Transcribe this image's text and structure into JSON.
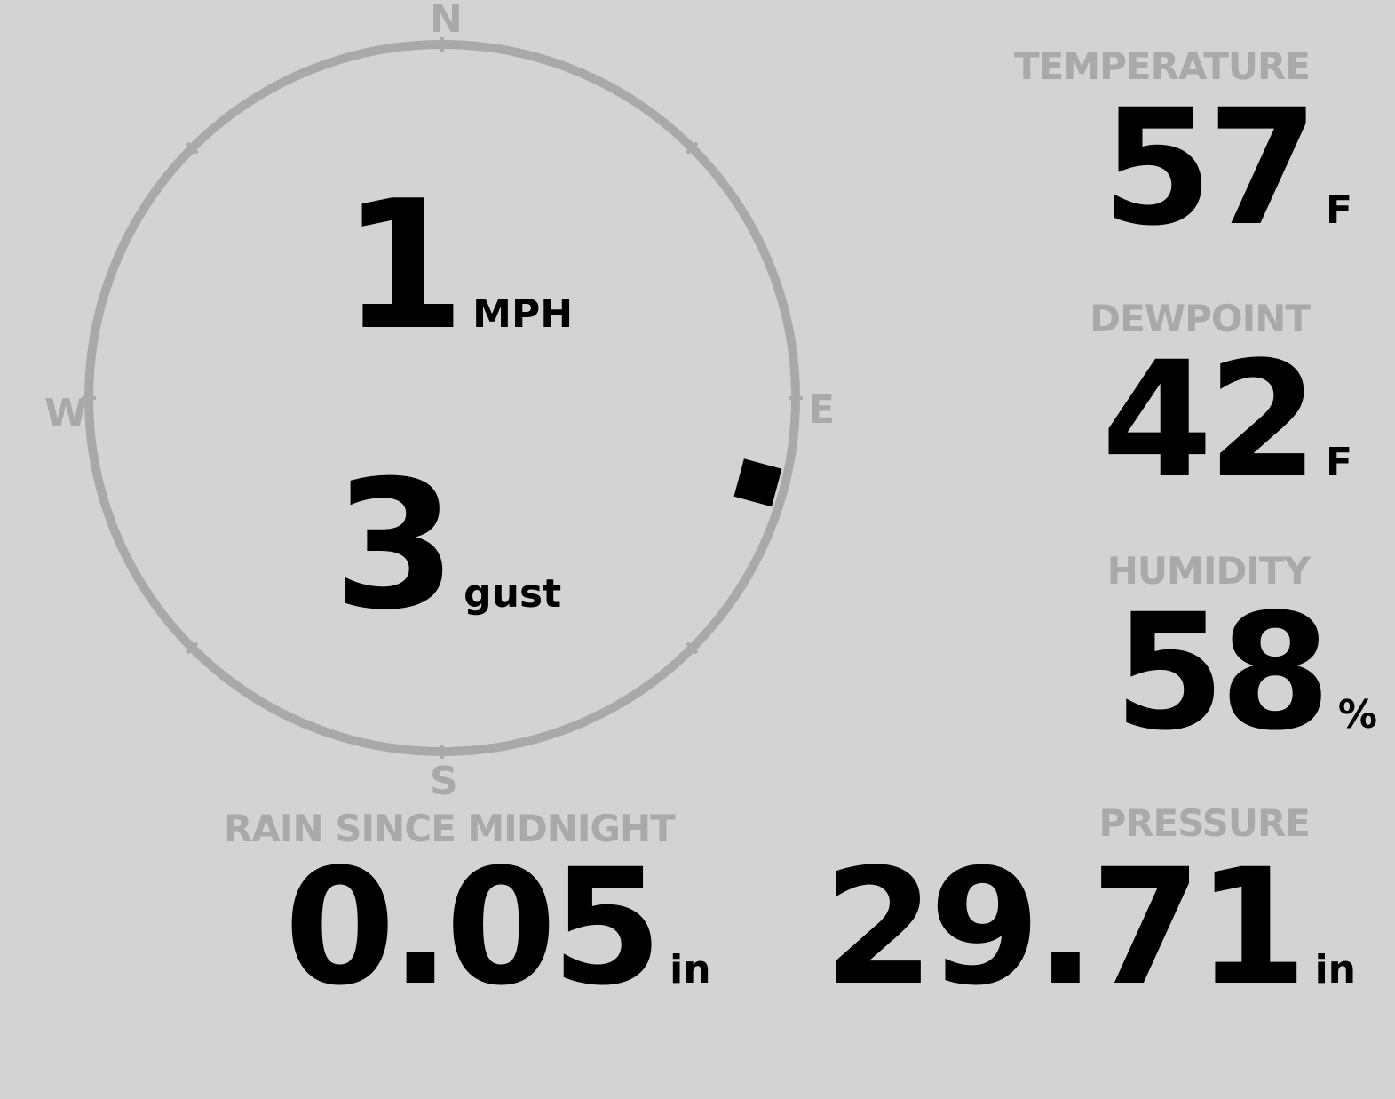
{
  "wind": {
    "speed": "1",
    "speed_unit": "MPH",
    "gust": "3",
    "gust_unit": "gust",
    "direction_degrees": 105,
    "cardinals": {
      "n": "N",
      "e": "E",
      "s": "S",
      "w": "W"
    }
  },
  "temperature": {
    "label": "TEMPERATURE",
    "value": "57",
    "unit": "F"
  },
  "dewpoint": {
    "label": "DEWPOINT",
    "value": "42",
    "unit": "F"
  },
  "humidity": {
    "label": "HUMIDITY",
    "value": "58",
    "unit": "%"
  },
  "rain": {
    "label": "RAIN SINCE MIDNIGHT",
    "value": "0.05",
    "unit": "in"
  },
  "pressure": {
    "label": "PRESSURE",
    "value": "29.71",
    "unit": "in"
  },
  "colors": {
    "background": "#d3d3d3",
    "label": "#a9a9a9",
    "value": "#000000",
    "ring": "#a9a9a9"
  }
}
